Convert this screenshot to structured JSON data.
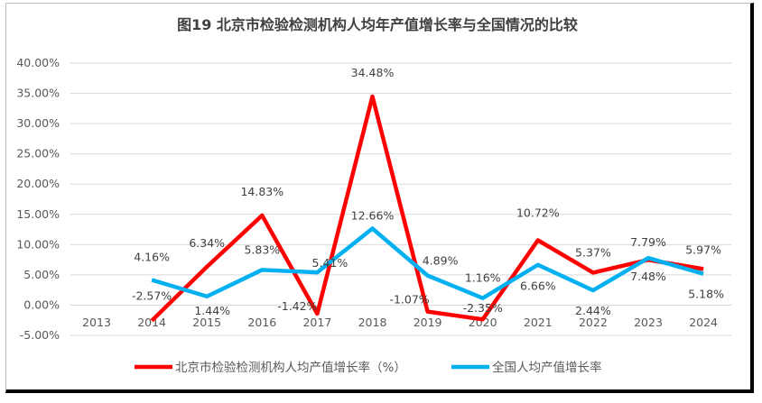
{
  "chart_data": {
    "type": "line",
    "title": "图19  北京市检验检测机构人均年产值增长率与全国情况的比较",
    "xlabel": "",
    "ylabel": "",
    "categories": [
      "2013",
      "2014",
      "2015",
      "2016",
      "2017",
      "2018",
      "2019",
      "2020",
      "2021",
      "2022",
      "2023",
      "2024"
    ],
    "ylim": [
      -5,
      40
    ],
    "yticks": [
      "-5.00%",
      "0.00%",
      "5.00%",
      "10.00%",
      "15.00%",
      "20.00%",
      "25.00%",
      "30.00%",
      "35.00%",
      "40.00%"
    ],
    "ytick_values": [
      -5,
      0,
      5,
      10,
      15,
      20,
      25,
      30,
      35,
      40
    ],
    "grid": true,
    "legend_position": "bottom",
    "series": [
      {
        "name": "北京市检验检测机构人均产值增长率（%）",
        "color": "#FF0000",
        "values": [
          null,
          -2.57,
          6.34,
          14.83,
          -1.42,
          34.48,
          -1.07,
          -2.35,
          10.72,
          5.37,
          7.48,
          5.97
        ],
        "labels": [
          null,
          "-2.57%",
          "6.34%",
          "14.83%",
          "-1.42%",
          "34.48%",
          "-1.07%",
          "-2.35%",
          "10.72%",
          "5.37%",
          "7.48%",
          "5.97%"
        ]
      },
      {
        "name": "全国人均产值增长率",
        "color": "#00B0F0",
        "values": [
          null,
          4.16,
          1.44,
          5.83,
          5.41,
          12.66,
          4.89,
          1.16,
          6.66,
          2.44,
          7.79,
          5.18
        ],
        "labels": [
          null,
          "4.16%",
          "1.44%",
          "5.83%",
          "5.41%",
          "12.66%",
          "4.89%",
          "1.16%",
          "6.66%",
          "2.44%",
          "7.79%",
          "5.18%"
        ]
      }
    ]
  }
}
